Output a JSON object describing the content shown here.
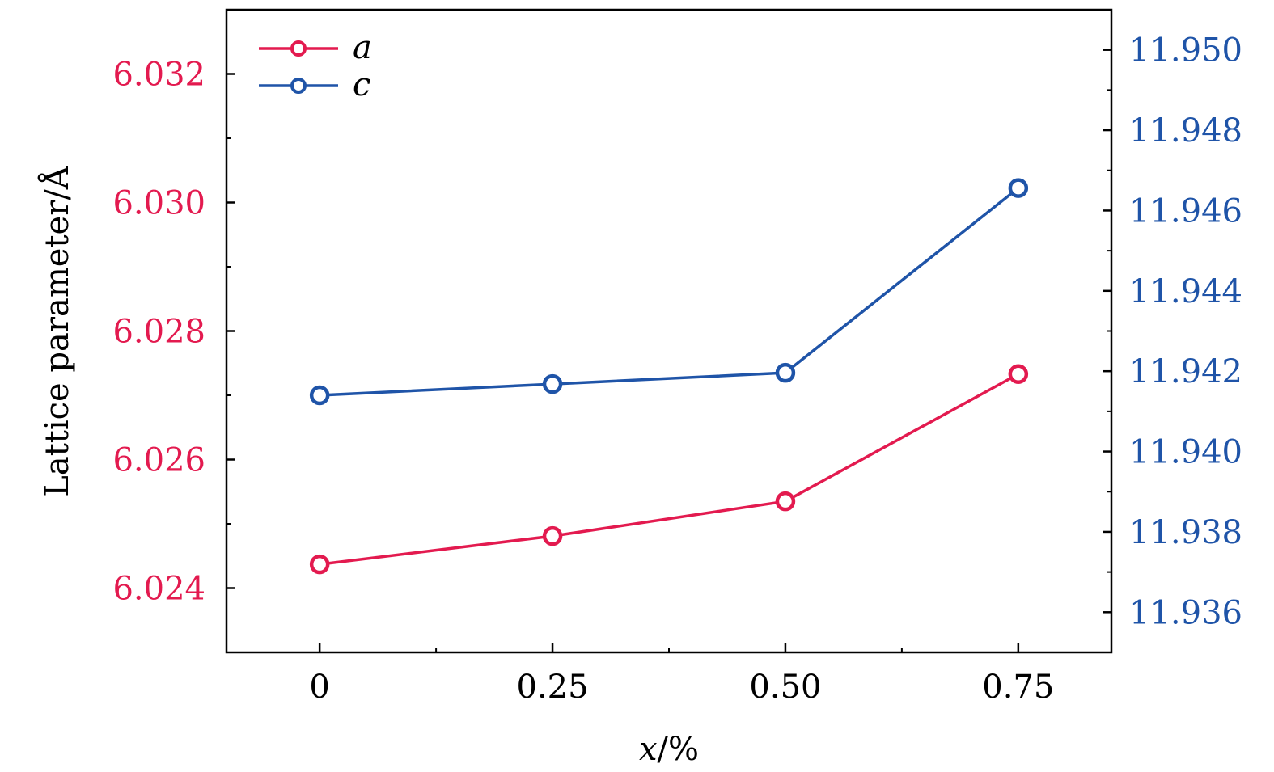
{
  "chart_data": {
    "type": "line",
    "title": "",
    "x": [
      0,
      0.25,
      0.5,
      0.75
    ],
    "x_tick_labels": [
      "0",
      "0.25",
      "0.50",
      "0.75"
    ],
    "xlabel": "x/%",
    "xlabel_italic_part": "x",
    "xlabel_rest": "/%",
    "xlim": [
      -0.1,
      0.85
    ],
    "ylabel": "Lattice parameter/Å",
    "ylim_left": [
      6.023,
      6.033
    ],
    "ylim_right": [
      11.935,
      11.951
    ],
    "left_ticks": [
      6.024,
      6.026,
      6.028,
      6.03,
      6.032
    ],
    "left_tick_labels": [
      "6.024",
      "6.026",
      "6.028",
      "6.030",
      "6.032"
    ],
    "right_ticks": [
      11.936,
      11.938,
      11.94,
      11.942,
      11.944,
      11.946,
      11.948,
      11.95
    ],
    "right_tick_labels": [
      "11.936",
      "11.938",
      "11.940",
      "11.942",
      "11.944",
      "11.946",
      "11.948",
      "11.950"
    ],
    "left_color": "#e31a4f",
    "right_color": "#1f54a8",
    "grid": false,
    "legend": "top-left",
    "series": [
      {
        "name": "a",
        "axis": "left",
        "color": "#e31a4f",
        "values": [
          6.02437,
          6.02481,
          6.02535,
          6.02733
        ]
      },
      {
        "name": "c",
        "axis": "right",
        "color": "#1f54a8",
        "values": [
          11.9414,
          11.94168,
          11.94196,
          11.94656
        ]
      }
    ]
  }
}
